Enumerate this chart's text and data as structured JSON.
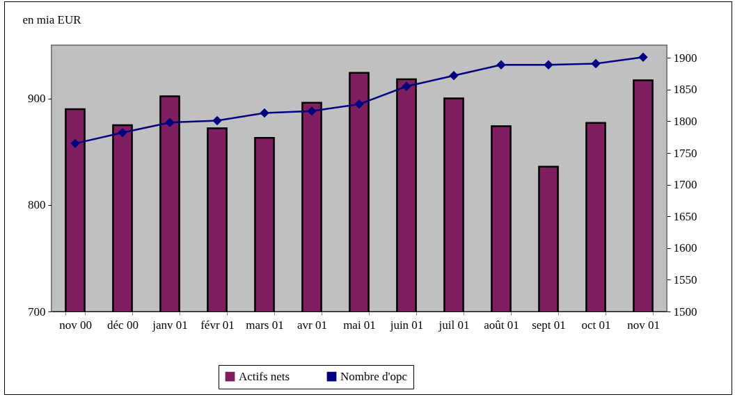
{
  "chart_data": {
    "type": "bar",
    "ylabel": "en mia EUR",
    "categories": [
      "nov 00",
      "déc 00",
      "janv 01",
      "févr 01",
      "mars 01",
      "avr 01",
      "mai 01",
      "juin 01",
      "juil 01",
      "août 01",
      "sept 01",
      "oct 01",
      "nov 01"
    ],
    "series": [
      {
        "name": "Actifs nets",
        "color": "#7f1f5f",
        "values": [
          890,
          875,
          902,
          872,
          863,
          896,
          924,
          918,
          900,
          874,
          836,
          877,
          917
        ]
      },
      {
        "name": "Nombre d'opc",
        "type": "line",
        "axis": "y2",
        "color": "#000080",
        "marker": "diamond",
        "values": [
          1765,
          1782,
          1798,
          1801,
          1813,
          1816,
          1827,
          1855,
          1872,
          1889,
          1889,
          1891,
          1901
        ]
      }
    ],
    "ylim": [
      700,
      950
    ],
    "yticks": [
      700,
      800,
      900
    ],
    "y2lim": [
      1500,
      1920
    ],
    "y2ticks": [
      1500,
      1550,
      1600,
      1650,
      1700,
      1750,
      1800,
      1850,
      1900
    ],
    "grid": false,
    "legend": "bottom"
  }
}
